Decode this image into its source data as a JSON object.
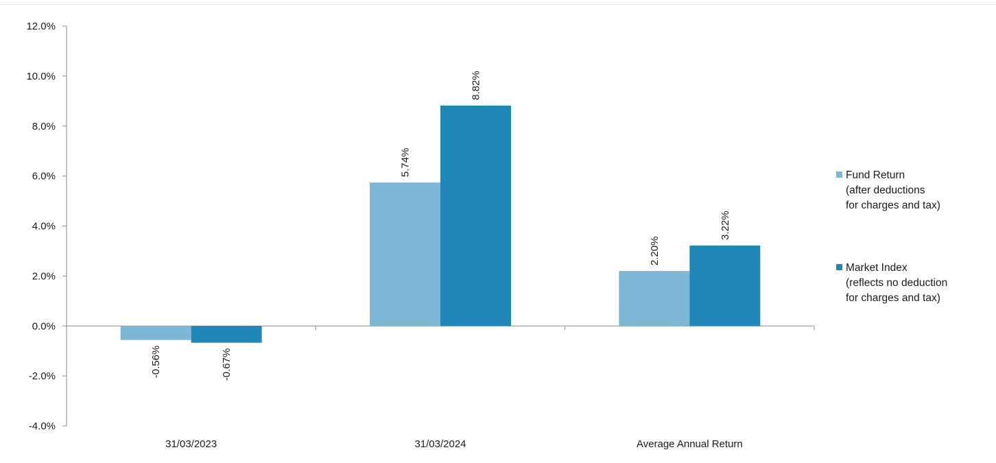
{
  "chart_data": {
    "type": "bar",
    "categories": [
      "31/03/2023",
      "31/03/2024",
      "Average Annual Return"
    ],
    "series": [
      {
        "name": "Fund Return (after deductions for charges and tax)",
        "legend_lines": [
          "Fund Return",
          "(after deductions",
          "for charges and tax)"
        ],
        "color": "#7fb8d6",
        "values": [
          -0.56,
          5.74,
          2.2
        ],
        "labels": [
          "-0.56%",
          "5.74%",
          "2.20%"
        ]
      },
      {
        "name": "Market Index (reflects no deduction for charges and tax)",
        "legend_lines": [
          "Market Index",
          "(reflects no deduction",
          "for charges and tax)"
        ],
        "color": "#1f88b8",
        "values": [
          -0.67,
          8.82,
          3.22
        ],
        "labels": [
          "-0.67%",
          "8.82%",
          "3.22%"
        ]
      }
    ],
    "y_ticks": [
      "12.0%",
      "10.0%",
      "8.0%",
      "6.0%",
      "4.0%",
      "2.0%",
      "0.0%",
      "-2.0%",
      "-4.0%"
    ],
    "ylim": [
      -4,
      12
    ],
    "title": "",
    "xlabel": "",
    "ylabel": "",
    "grid": false,
    "legend_position": "right"
  }
}
